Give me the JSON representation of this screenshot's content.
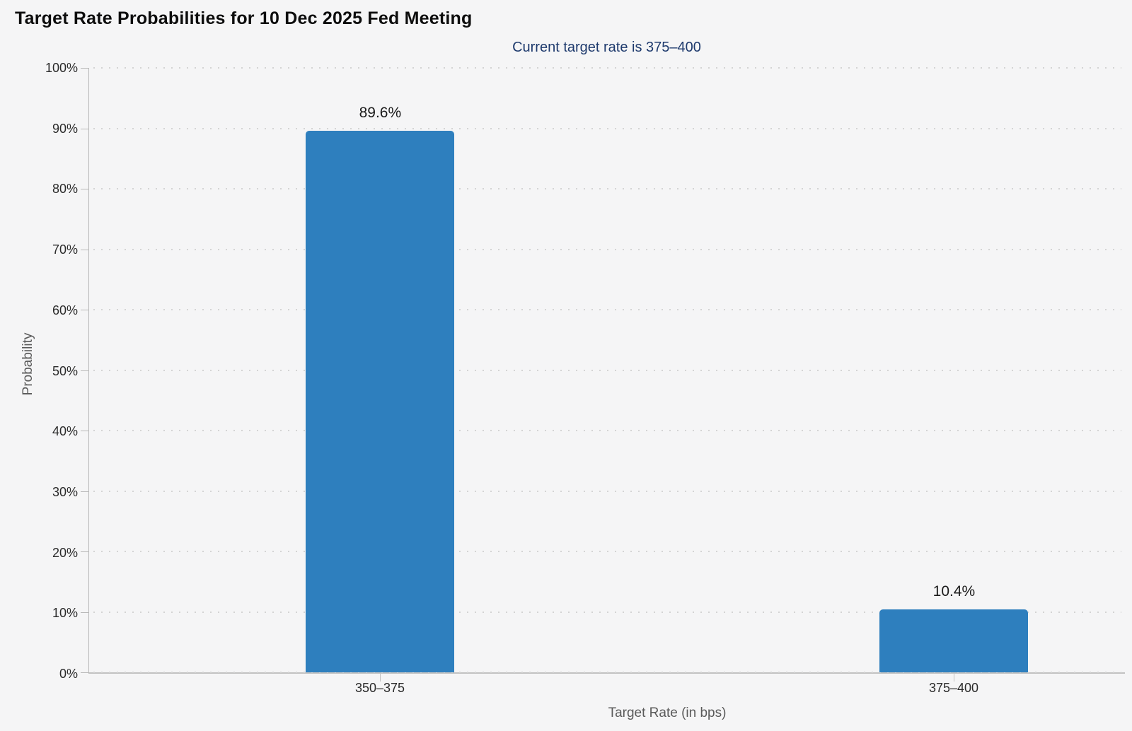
{
  "header": {
    "title": "Target Rate Probabilities for 10 Dec 2025 Fed Meeting",
    "subtitle": "Current target rate is 375–400"
  },
  "chart_data": {
    "type": "bar",
    "title": "Target Rate Probabilities for 10 Dec 2025 Fed Meeting",
    "subtitle": "Current target rate is 375–400",
    "categories": [
      "350–375",
      "375–400"
    ],
    "values": [
      89.6,
      10.4
    ],
    "value_labels": [
      "89.6%",
      "10.4%"
    ],
    "xlabel": "Target Rate (in bps)",
    "ylabel": "Probability",
    "ylim": [
      0,
      100
    ],
    "ytick_step": 10,
    "ytick_labels": [
      "0%",
      "10%",
      "20%",
      "30%",
      "40%",
      "50%",
      "60%",
      "70%",
      "80%",
      "90%",
      "100%"
    ],
    "grid": "horizontal dotted lines, on",
    "legend": "none",
    "colors": {
      "bar": "#2e7fbe",
      "subtitle_text": "#1e3a6d",
      "title_text": "#0d0d0d",
      "tick_text": "#2b2b2b",
      "axis_title_text": "#5a5a5a",
      "gridline": "#d4d4d4",
      "axis_line": "#b8b8b8",
      "background": "#f5f5f6"
    }
  }
}
